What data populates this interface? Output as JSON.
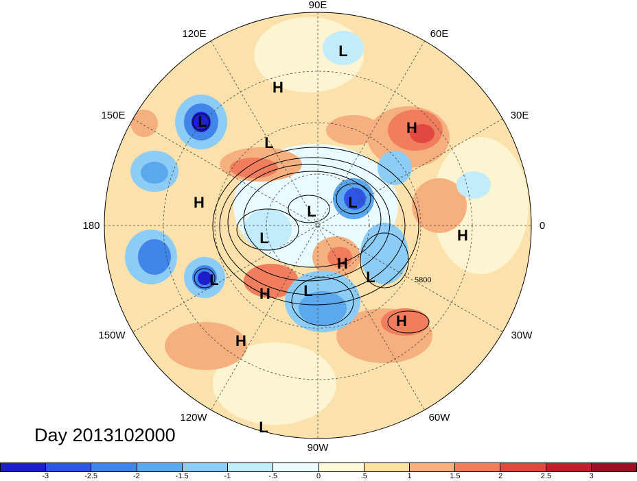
{
  "date_label": "Day 2013102000",
  "longitude_labels": {
    "top": "90E",
    "top_right": "60E",
    "right_upper": "30E",
    "right": "0",
    "right_lower": "30W",
    "bottom_right": "60W",
    "bottom": "90W",
    "bottom_left": "120W",
    "left_lower": "150W",
    "left": "180",
    "left_upper": "150E",
    "top_left": "120E"
  },
  "contour_label": "5800",
  "pressure_centers": [
    {
      "id": "L-1",
      "label": "L"
    },
    {
      "id": "H-1",
      "label": "H"
    },
    {
      "id": "L-2",
      "label": "L"
    },
    {
      "id": "L-3",
      "label": "L"
    },
    {
      "id": "H-2",
      "label": "H"
    },
    {
      "id": "H-3",
      "label": "H"
    },
    {
      "id": "L-4",
      "label": "L"
    },
    {
      "id": "L-5",
      "label": "L"
    },
    {
      "id": "L-6",
      "label": "L"
    },
    {
      "id": "H-4",
      "label": "H"
    },
    {
      "id": "L-7",
      "label": "L"
    },
    {
      "id": "H-5",
      "label": "H"
    },
    {
      "id": "L-8",
      "label": "L"
    },
    {
      "id": "H-6",
      "label": "H"
    },
    {
      "id": "L-9",
      "label": "L"
    },
    {
      "id": "H-7",
      "label": "H"
    },
    {
      "id": "H-8",
      "label": "H"
    },
    {
      "id": "L-10",
      "label": "L"
    }
  ],
  "colorbar": {
    "labels": [
      "-3",
      "-2.5",
      "-2",
      "-1.5",
      "-1",
      "-.5",
      "0",
      ".5",
      "1",
      "1.5",
      "2",
      "2.5",
      "3"
    ],
    "colors": [
      "#1d1fce",
      "#2e55e6",
      "#4285e8",
      "#5ba8ee",
      "#8dccf5",
      "#c3ecfb",
      "#eafbfd",
      "#fefad8",
      "#fbe0a4",
      "#f6b07f",
      "#ef7d5e",
      "#e24842",
      "#c11d2c",
      "#9b1024"
    ]
  }
}
